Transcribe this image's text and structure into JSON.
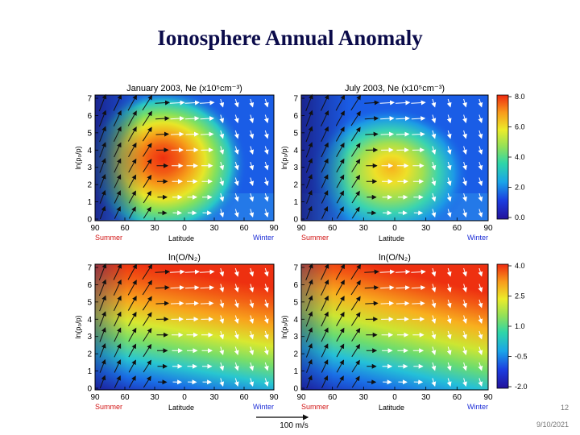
{
  "slide": {
    "title": "Ionosphere Annual Anomaly",
    "page_number": "12",
    "date": "9/10/2021"
  },
  "panels": [
    {
      "id": "jan-ne",
      "title": "January 2003, Ne (x10⁵cm⁻³)",
      "field": "ne",
      "season": "jan"
    },
    {
      "id": "jul-ne",
      "title": "July 2003, Ne (x10⁵cm⁻³)",
      "field": "ne",
      "season": "jul"
    },
    {
      "id": "jan-on2",
      "title": "ln(O/N₂)",
      "field": "on2",
      "season": "jan"
    },
    {
      "id": "jul-on2",
      "title": "ln(O/N₂)",
      "field": "on2",
      "season": "jul"
    }
  ],
  "axes": {
    "y_label": "ln(p₀/p)",
    "y_ticks": [
      "0",
      "1",
      "2",
      "3",
      "4",
      "5",
      "6",
      "7"
    ],
    "x_label": "Latitude",
    "x_ticks": [
      "90",
      "60",
      "30",
      "0",
      "30",
      "60",
      "90"
    ],
    "summer_label": "Summer",
    "winter_label": "Winter"
  },
  "colorbars": [
    {
      "id": "ne-colorbar",
      "ticks": [
        "8.0",
        "6.0",
        "4.0",
        "2.0",
        "0.0"
      ]
    },
    {
      "id": "on2-colorbar",
      "ticks": [
        "4.0",
        "2.5",
        "1.0",
        "-0.5",
        "-2.0"
      ]
    }
  ],
  "wind_scale": {
    "label": "100 m/s"
  },
  "colors": {
    "summer": "#d21414",
    "winter": "#1a2bd6",
    "title": "#0b0b4a"
  }
}
